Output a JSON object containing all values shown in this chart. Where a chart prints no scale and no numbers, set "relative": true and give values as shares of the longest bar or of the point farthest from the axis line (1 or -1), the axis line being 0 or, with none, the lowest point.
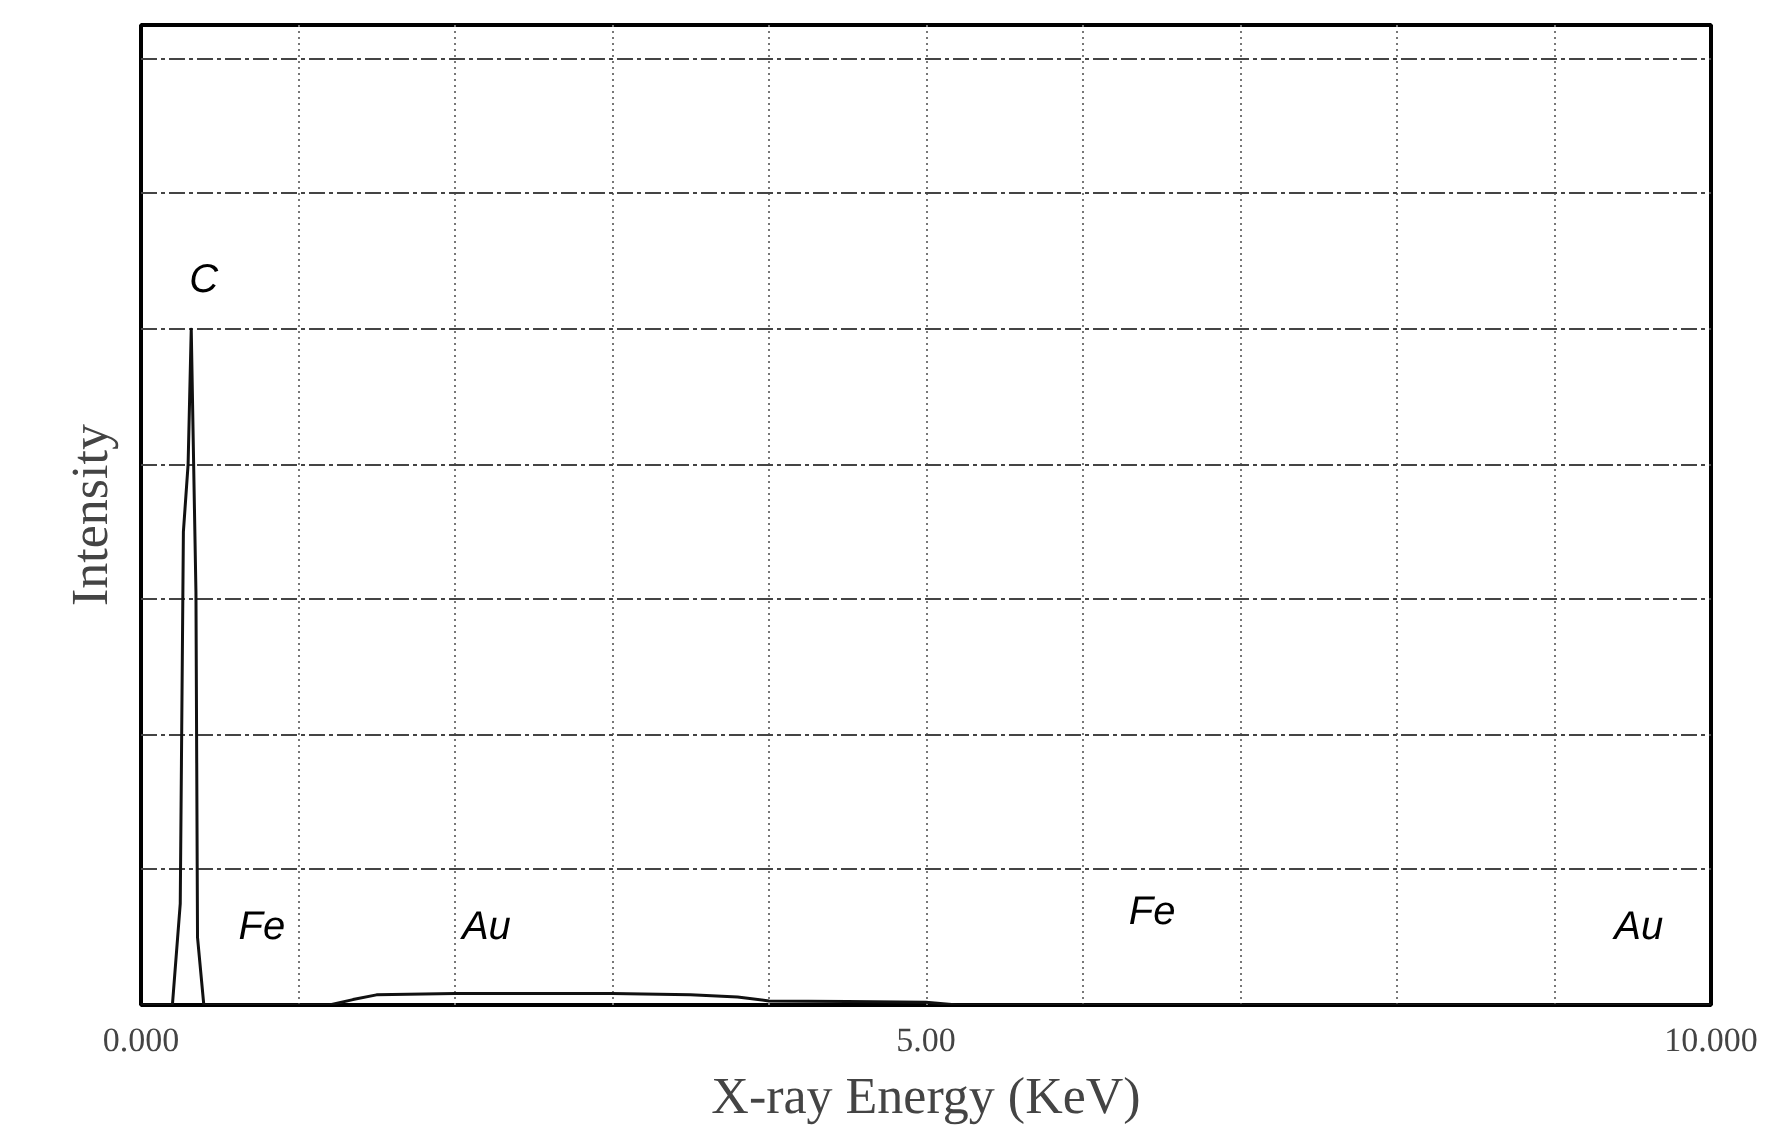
{
  "chart_data": {
    "type": "line",
    "relative": true,
    "xlabel": "X-ray Energy (KeV)",
    "ylabel": "Intensity",
    "x": [
      0,
      0.2,
      0.25,
      0.27,
      0.3,
      0.32,
      0.35,
      0.36,
      0.4,
      1.2,
      1.35,
      1.5,
      2.0,
      2.5,
      3.0,
      3.5,
      3.8,
      4.0,
      4.5,
      5.0,
      5.2,
      10
    ],
    "series": [
      {
        "color": "#111111",
        "values": [
          0,
          0,
          0.15,
          0.7,
          0.8,
          1.0,
          0.61,
          0.1,
          0,
          0,
          0.008,
          0.015,
          0.017,
          0.017,
          0.017,
          0.015,
          0.012,
          0.006,
          0.005,
          0.004,
          0,
          0
        ]
      }
    ],
    "xlim": [
      0,
      10
    ],
    "xticks": [
      {
        "value": 0,
        "label": "0.000"
      },
      {
        "value": 1,
        "label": null
      },
      {
        "value": 2,
        "label": null
      },
      {
        "value": 3,
        "label": null
      },
      {
        "value": 4,
        "label": null
      },
      {
        "value": 5,
        "label": "5.00"
      },
      {
        "value": 6,
        "label": null
      },
      {
        "value": 7,
        "label": null
      },
      {
        "value": 8,
        "label": null
      },
      {
        "value": 9,
        "label": null
      },
      {
        "value": 10,
        "label": "10.000"
      }
    ],
    "grid": true,
    "line_style": "solid",
    "marker": "none",
    "annotations": [
      "C",
      "Fe",
      "Au",
      "Fe",
      "Au"
    ]
  }
}
